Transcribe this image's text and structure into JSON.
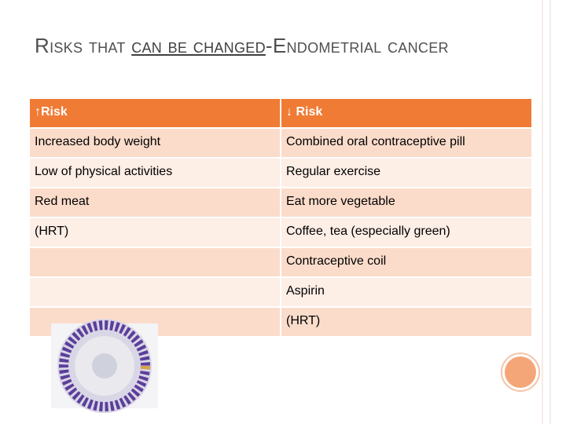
{
  "title": {
    "before": "Risks that ",
    "underlined": "can be changed",
    "after": "-Endometrial cancer"
  },
  "table": {
    "header": [
      "↑Risk",
      "↓ Risk"
    ],
    "increase": [
      "Increased body weight",
      "Low of physical activities",
      "Red meat",
      "(HRT)"
    ],
    "decrease": [
      "Combined oral contraceptive pill",
      "Regular exercise",
      "Eat more vegetable",
      "Coffee, tea (especially green)",
      "Contraceptive coil",
      "Aspirin",
      "(HRT)"
    ]
  }
}
